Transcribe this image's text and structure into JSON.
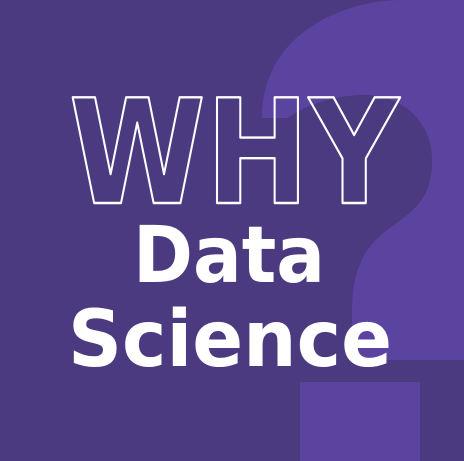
{
  "headline": {
    "line1": "WHY",
    "line2": "Data",
    "line3": "Science"
  },
  "decoration": {
    "icon": "question-mark-icon",
    "glyph": "?"
  },
  "colors": {
    "background": "#4b3a80",
    "question_mark": "#5a44a0",
    "text": "#ffffff"
  }
}
